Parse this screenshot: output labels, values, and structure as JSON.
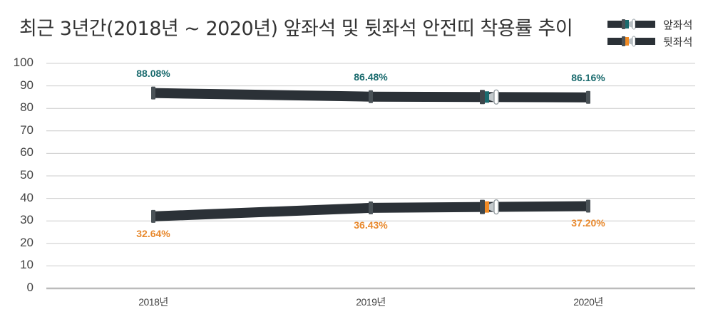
{
  "title": "최근 3년간(2018년 ~ 2020년) 앞좌석 및 뒷좌석 안전띠 착용률 추이",
  "legend": [
    {
      "label": "앞좌석",
      "icon": "seatbelt-teal-icon",
      "color": "#1a6b6e"
    },
    {
      "label": "뒷좌석",
      "icon": "seatbelt-orange-icon",
      "color": "#f08a24"
    }
  ],
  "colors": {
    "belt": "#2b3137",
    "belt_end": "#4a5257",
    "front_accent": "#1a6b6e",
    "rear_accent": "#f08a24",
    "front_label": "#1a6b6e",
    "rear_label": "#e8892e",
    "grid": "#cccccc",
    "axis": "#bbbbbb"
  },
  "y_ticks": [
    "100",
    "90",
    "80",
    "70",
    "60",
    "50",
    "40",
    "30",
    "20",
    "10",
    "0"
  ],
  "x_ticks": [
    "2018년",
    "2019년",
    "2020년"
  ],
  "series_labels": {
    "front": [
      "88.08%",
      "86.48%",
      "86.16%"
    ],
    "rear": [
      "32.64%",
      "36.43%",
      "37.20%"
    ]
  },
  "chart_data": {
    "type": "line",
    "title": "최근 3년간(2018년 ~ 2020년) 앞좌석 및 뒷좌석 안전띠 착용률 추이",
    "xlabel": "",
    "ylabel": "",
    "categories": [
      "2018년",
      "2019년",
      "2020년"
    ],
    "series": [
      {
        "name": "앞좌석",
        "values": [
          88.08,
          86.48,
          86.16
        ],
        "color": "#1a6b6e"
      },
      {
        "name": "뒷좌석",
        "values": [
          32.64,
          36.43,
          37.2
        ],
        "color": "#f08a24"
      }
    ],
    "ylim": [
      0,
      100
    ],
    "yticks": [
      0,
      10,
      20,
      30,
      40,
      50,
      60,
      70,
      80,
      90,
      100
    ],
    "grid": true,
    "legend_position": "top-right",
    "data_labels": {
      "앞좌석": [
        "88.08%",
        "86.48%",
        "86.16%"
      ],
      "뒷좌석": [
        "32.64%",
        "36.43%",
        "37.20%"
      ]
    }
  }
}
